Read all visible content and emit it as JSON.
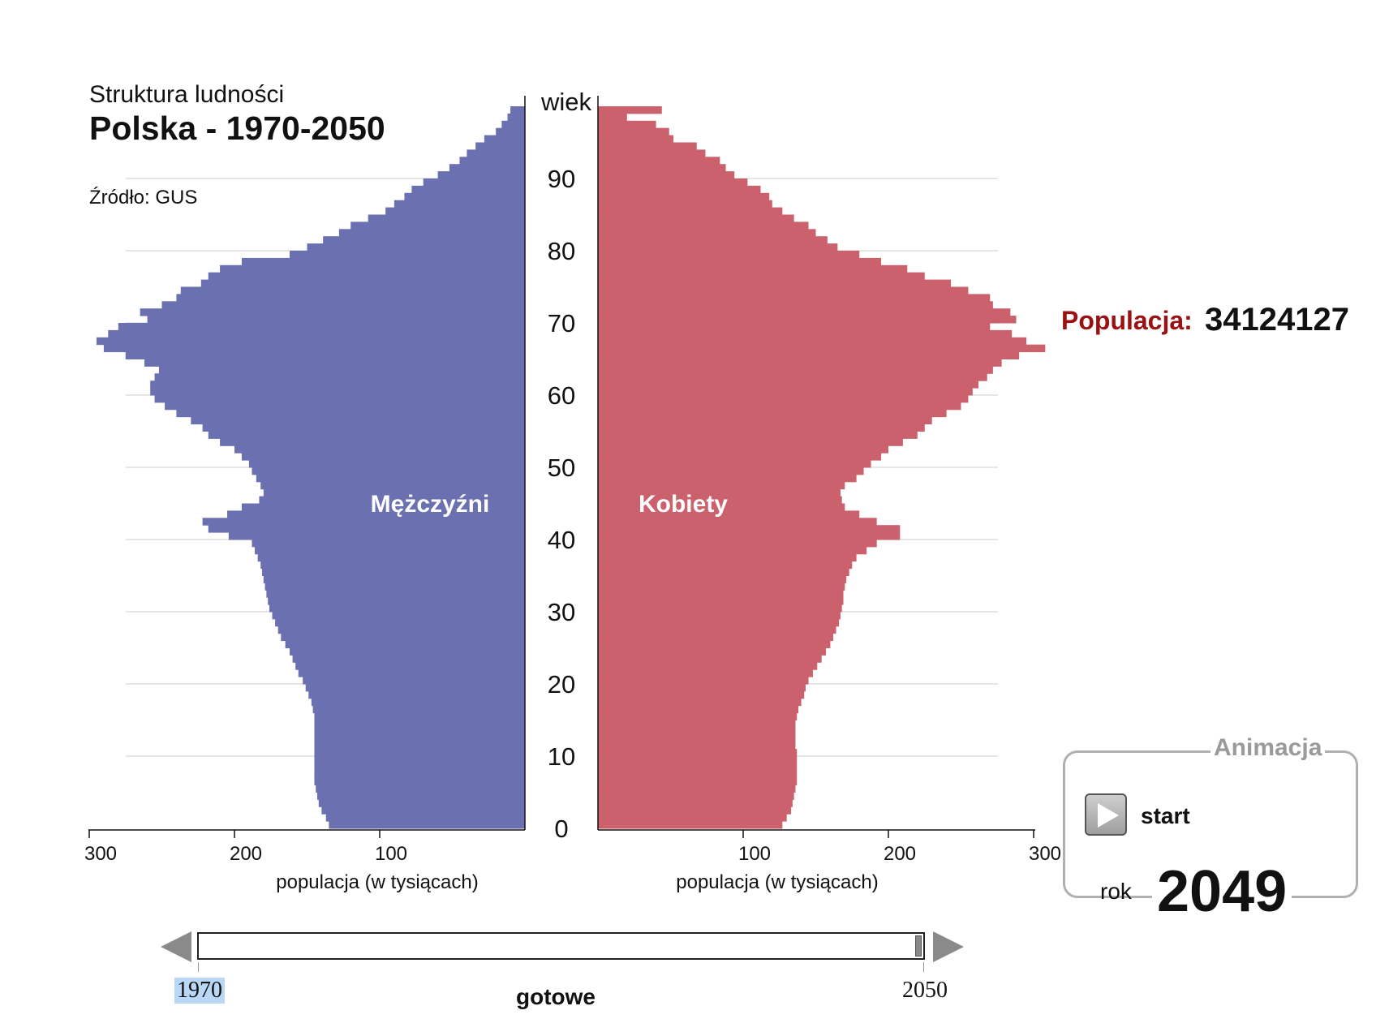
{
  "header": {
    "subtitle": "Struktura ludności",
    "title": "Polska - 1970-2050",
    "source": "Źródło: GUS"
  },
  "population": {
    "label": "Populacja:",
    "value": "34124127"
  },
  "animation": {
    "legend": "Animacja",
    "start_label": "start",
    "rok_label": "rok",
    "year": "2049",
    "play_icon": "play-icon"
  },
  "slider": {
    "min_label": "1970",
    "max_label": "2050",
    "status": "gotowe",
    "value": 2049
  },
  "chart_data": {
    "type": "bar",
    "orientation": "horizontal",
    "subtype": "population-pyramid",
    "age_axis_label": "wiek",
    "age_ticks": [
      "0",
      "10",
      "20",
      "30",
      "40",
      "50",
      "60",
      "70",
      "80",
      "90"
    ],
    "xlabel_left": "populacja (w tysiącach)",
    "xlabel_right": "populacja (w tysiącach)",
    "x_ticks_left": [
      "300",
      "200",
      "100"
    ],
    "x_ticks_right": [
      "100",
      "200",
      "300"
    ],
    "xlim": [
      0,
      300
    ],
    "grid": true,
    "colors": {
      "men": "#6a70b0",
      "women": "#cb616c"
    },
    "ages": [
      0,
      1,
      2,
      3,
      4,
      5,
      6,
      7,
      8,
      9,
      10,
      11,
      12,
      13,
      14,
      15,
      16,
      17,
      18,
      19,
      20,
      21,
      22,
      23,
      24,
      25,
      26,
      27,
      28,
      29,
      30,
      31,
      32,
      33,
      34,
      35,
      36,
      37,
      38,
      39,
      40,
      41,
      42,
      43,
      44,
      45,
      46,
      47,
      48,
      49,
      50,
      51,
      52,
      53,
      54,
      55,
      56,
      57,
      58,
      59,
      60,
      61,
      62,
      63,
      64,
      65,
      66,
      67,
      68,
      69,
      70,
      71,
      72,
      73,
      74,
      75,
      76,
      77,
      78,
      79,
      80,
      81,
      82,
      83,
      84,
      85,
      86,
      87,
      88,
      89,
      90,
      91,
      92,
      93,
      94,
      95,
      96,
      97,
      98,
      99,
      100
    ],
    "series": [
      {
        "name": "Mężczyźni",
        "side": "left",
        "values": [
          135,
          137,
          140,
          142,
          143,
          144,
          145,
          145,
          145,
          145,
          145,
          145,
          145,
          145,
          145,
          145,
          146,
          147,
          149,
          151,
          153,
          156,
          158,
          160,
          162,
          165,
          168,
          170,
          172,
          174,
          176,
          177,
          178,
          179,
          180,
          181,
          182,
          184,
          186,
          188,
          204,
          218,
          222,
          205,
          195,
          183,
          180,
          182,
          185,
          188,
          190,
          195,
          200,
          210,
          218,
          222,
          230,
          240,
          248,
          255,
          258,
          258,
          255,
          252,
          262,
          275,
          290,
          295,
          287,
          280,
          260,
          265,
          250,
          240,
          237,
          223,
          218,
          210,
          195,
          162,
          150,
          139,
          128,
          120,
          108,
          96,
          90,
          83,
          78,
          70,
          60,
          52,
          45,
          40,
          34,
          28,
          20,
          16,
          12,
          10,
          0
        ]
      },
      {
        "name": "Kobiety",
        "side": "right",
        "values": [
          127,
          130,
          133,
          134,
          135,
          136,
          137,
          137,
          137,
          137,
          137,
          136,
          136,
          136,
          136,
          137,
          138,
          140,
          142,
          143,
          145,
          148,
          151,
          154,
          157,
          160,
          162,
          164,
          166,
          167,
          168,
          169,
          169,
          170,
          171,
          173,
          175,
          178,
          185,
          192,
          208,
          208,
          192,
          180,
          170,
          168,
          167,
          170,
          178,
          183,
          188,
          195,
          200,
          210,
          220,
          225,
          230,
          240,
          250,
          255,
          258,
          262,
          268,
          272,
          278,
          290,
          308,
          295,
          285,
          270,
          288,
          284,
          272,
          270,
          255,
          243,
          225,
          213,
          195,
          180,
          165,
          158,
          150,
          145,
          135,
          127,
          120,
          118,
          112,
          103,
          94,
          88,
          84,
          74,
          68,
          52,
          49,
          40,
          20,
          44,
          0
        ]
      }
    ]
  }
}
